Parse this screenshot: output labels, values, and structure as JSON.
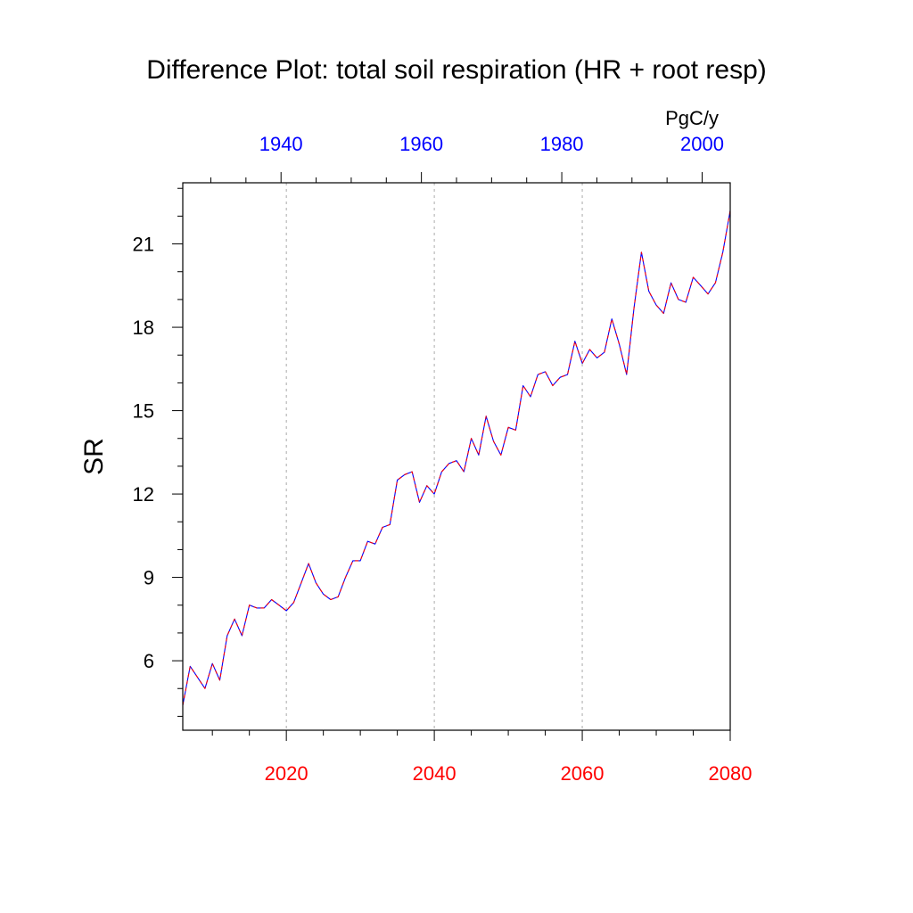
{
  "chart_data": {
    "type": "line",
    "title": "Difference Plot: total soil respiration (HR + root resp)",
    "ylabel": "SR",
    "units_label": "PgC/y",
    "ylim": [
      3.5,
      23.2
    ],
    "yticks": [
      6,
      9,
      12,
      15,
      18,
      21
    ],
    "bottom_axis": {
      "xlim": [
        2006,
        2080
      ],
      "ticks": [
        2020,
        2040,
        2060,
        2080
      ],
      "tick_color": "#ff0000"
    },
    "top_axis": {
      "xlim": [
        1926,
        2004
      ],
      "ticks": [
        1940,
        1960,
        1980,
        2000
      ],
      "tick_color": "#0000ff"
    },
    "grid": "dashed vertical lines at bottom-axis major ticks",
    "series": [
      {
        "color": "#0000ff",
        "style": "solid",
        "x": [
          2006,
          2007,
          2008,
          2009,
          2010,
          2011,
          2012,
          2013,
          2014,
          2015,
          2016,
          2017,
          2018,
          2019,
          2020,
          2021,
          2022,
          2023,
          2024,
          2025,
          2026,
          2027,
          2028,
          2029,
          2030,
          2031,
          2032,
          2033,
          2034,
          2035,
          2036,
          2037,
          2038,
          2039,
          2040,
          2041,
          2042,
          2043,
          2044,
          2045,
          2046,
          2047,
          2048,
          2049,
          2050,
          2051,
          2052,
          2053,
          2054,
          2055,
          2056,
          2057,
          2058,
          2059,
          2060,
          2061,
          2062,
          2063,
          2064,
          2065,
          2066,
          2067,
          2068,
          2069,
          2070,
          2071,
          2072,
          2073,
          2074,
          2075,
          2076,
          2077,
          2078,
          2079,
          2080
        ],
        "y": [
          4.4,
          5.8,
          5.4,
          5.0,
          5.9,
          5.3,
          6.9,
          7.5,
          6.9,
          8.0,
          7.9,
          7.9,
          8.2,
          8.0,
          7.8,
          8.1,
          8.8,
          9.5,
          8.8,
          8.4,
          8.2,
          8.3,
          9.0,
          9.6,
          9.6,
          10.3,
          10.2,
          10.8,
          10.9,
          12.5,
          12.7,
          12.8,
          11.7,
          12.3,
          12.0,
          12.8,
          13.1,
          13.2,
          12.8,
          14.0,
          13.4,
          14.8,
          13.9,
          13.4,
          14.4,
          14.3,
          15.9,
          15.5,
          16.3,
          16.4,
          15.9,
          16.2,
          16.3,
          17.5,
          16.7,
          17.2,
          16.9,
          17.1,
          18.3,
          17.4,
          16.3,
          18.7,
          20.7,
          19.3,
          18.8,
          18.5,
          19.6,
          19.0,
          18.9,
          19.8,
          19.5,
          19.2,
          19.6,
          20.7,
          22.2
        ]
      },
      {
        "color": "#ff0000",
        "style": "dashed",
        "x": [
          2006,
          2007,
          2008,
          2009,
          2010,
          2011,
          2012,
          2013,
          2014,
          2015,
          2016,
          2017,
          2018,
          2019,
          2020,
          2021,
          2022,
          2023,
          2024,
          2025,
          2026,
          2027,
          2028,
          2029,
          2030,
          2031,
          2032,
          2033,
          2034,
          2035,
          2036,
          2037,
          2038,
          2039,
          2040,
          2041,
          2042,
          2043,
          2044,
          2045,
          2046,
          2047,
          2048,
          2049,
          2050,
          2051,
          2052,
          2053,
          2054,
          2055,
          2056,
          2057,
          2058,
          2059,
          2060,
          2061,
          2062,
          2063,
          2064,
          2065,
          2066,
          2067,
          2068,
          2069,
          2070,
          2071,
          2072,
          2073,
          2074,
          2075,
          2076,
          2077,
          2078,
          2079,
          2080
        ],
        "y": [
          4.4,
          5.8,
          5.4,
          5.0,
          5.9,
          5.3,
          6.9,
          7.5,
          6.9,
          8.0,
          7.9,
          7.9,
          8.2,
          8.0,
          7.8,
          8.1,
          8.8,
          9.5,
          8.8,
          8.4,
          8.2,
          8.3,
          9.0,
          9.6,
          9.6,
          10.3,
          10.2,
          10.8,
          10.9,
          12.5,
          12.7,
          12.8,
          11.7,
          12.3,
          12.0,
          12.8,
          13.1,
          13.2,
          12.8,
          14.0,
          13.4,
          14.8,
          13.9,
          13.4,
          14.4,
          14.3,
          15.9,
          15.5,
          16.3,
          16.4,
          15.9,
          16.2,
          16.3,
          17.5,
          16.7,
          17.2,
          16.9,
          17.1,
          18.3,
          17.4,
          16.3,
          18.7,
          20.7,
          19.3,
          18.8,
          18.5,
          19.6,
          19.0,
          18.9,
          19.8,
          19.5,
          19.2,
          19.6,
          20.7,
          22.2
        ]
      }
    ]
  }
}
